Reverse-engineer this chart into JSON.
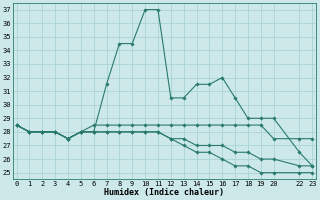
{
  "xlabel": "Humidex (Indice chaleur)",
  "background_color": "#cce8e8",
  "grid_color": "#aad4d4",
  "line_color": "#2a7a70",
  "series": [
    {
      "x": [
        0,
        1,
        2,
        3,
        4,
        5,
        6,
        7,
        8,
        9,
        10,
        11,
        12,
        13,
        14,
        15,
        16,
        17,
        18,
        19,
        20,
        22,
        23
      ],
      "y": [
        28.5,
        28.0,
        28.0,
        28.0,
        27.5,
        28.0,
        28.0,
        31.5,
        34.5,
        34.5,
        37.0,
        37.0,
        30.5,
        30.5,
        31.5,
        31.5,
        32.0,
        30.5,
        29.0,
        29.0,
        29.0,
        26.5,
        25.5
      ]
    },
    {
      "x": [
        0,
        1,
        2,
        3,
        4,
        5,
        6,
        7,
        8,
        9,
        10,
        11,
        12,
        13,
        14,
        15,
        16,
        17,
        18,
        19,
        20,
        22,
        23
      ],
      "y": [
        28.5,
        28.0,
        28.0,
        28.0,
        27.5,
        28.0,
        28.5,
        28.5,
        28.5,
        28.5,
        28.5,
        28.5,
        28.5,
        28.5,
        28.5,
        28.5,
        28.5,
        28.5,
        28.5,
        28.5,
        27.5,
        27.5,
        27.5
      ]
    },
    {
      "x": [
        0,
        1,
        2,
        3,
        4,
        5,
        6,
        7,
        8,
        9,
        10,
        11,
        12,
        13,
        14,
        15,
        16,
        17,
        18,
        19,
        20,
        22,
        23
      ],
      "y": [
        28.5,
        28.0,
        28.0,
        28.0,
        27.5,
        28.0,
        28.0,
        28.0,
        28.0,
        28.0,
        28.0,
        28.0,
        27.5,
        27.5,
        27.0,
        27.0,
        27.0,
        26.5,
        26.5,
        26.0,
        26.0,
        25.5,
        25.5
      ]
    },
    {
      "x": [
        0,
        1,
        2,
        3,
        4,
        5,
        6,
        7,
        8,
        9,
        10,
        11,
        12,
        13,
        14,
        15,
        16,
        17,
        18,
        19,
        20,
        22,
        23
      ],
      "y": [
        28.5,
        28.0,
        28.0,
        28.0,
        27.5,
        28.0,
        28.0,
        28.0,
        28.0,
        28.0,
        28.0,
        28.0,
        27.5,
        27.0,
        26.5,
        26.5,
        26.0,
        25.5,
        25.5,
        25.0,
        25.0,
        25.0,
        25.0
      ]
    }
  ],
  "ylim": [
    24.5,
    37.5
  ],
  "yticks": [
    25,
    26,
    27,
    28,
    29,
    30,
    31,
    32,
    33,
    34,
    35,
    36,
    37
  ],
  "xticks": [
    0,
    1,
    2,
    3,
    4,
    5,
    6,
    7,
    8,
    9,
    10,
    11,
    12,
    13,
    14,
    15,
    16,
    17,
    18,
    19,
    20,
    22,
    23
  ],
  "xlim": [
    -0.3,
    23.3
  ],
  "tick_fontsize": 5.0,
  "xlabel_fontsize": 6.0
}
